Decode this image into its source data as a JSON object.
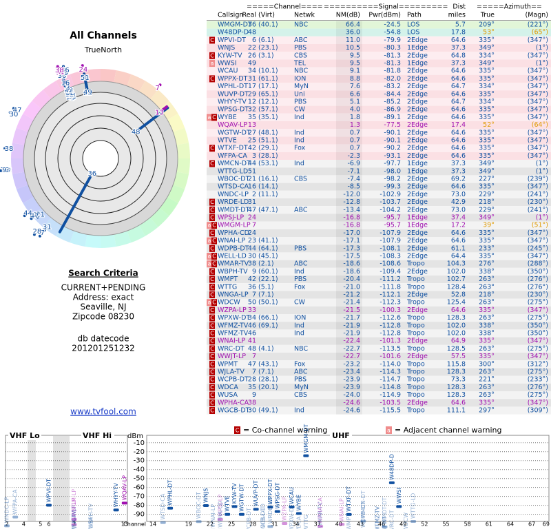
{
  "header": {
    "title": "All Channels",
    "north": "TrueNorth"
  },
  "criteria": {
    "title": "Search Criteria",
    "lines": [
      "CURRENT+PENDING",
      "Address: exact",
      "Seaville, NJ",
      "Zipcode 08230"
    ],
    "db_label": "db datecode",
    "db_value": "201201251232"
  },
  "link": "www.tvfool.com",
  "table": {
    "header_top": [
      "=====Channel====",
      "==========Signal=========",
      "Dist",
      "=====Azimuth=="
    ],
    "columns": [
      "Callsign",
      "Real",
      "(Virt)",
      "Netwk",
      "NM(dB)",
      "Pwr(dBm)",
      "Path",
      "miles",
      "True",
      "(Magn)"
    ],
    "rows": [
      {
        "call": "WMGM-DT",
        "real": "36",
        "virt": "(40.1)",
        "net": "NBC",
        "nm": "66.4",
        "pwr": "-24.5",
        "path": "LOS",
        "dist": "5.7",
        "true": "209°",
        "magn": "(221°)",
        "color": "#1050a0"
      },
      {
        "call": "W48DP-D",
        "real": "48",
        "nm": "36.0",
        "pwr": "-54.8",
        "path": "LOS",
        "dist": "17.8",
        "true": "53°",
        "magn": "(65°)",
        "color": "#1050a0",
        "az_color": "#e09a00"
      },
      {
        "flags": [
          "C"
        ],
        "call": "WPVI-DT",
        "real": "6",
        "virt": "(6.1)",
        "net": "ABC",
        "nm": "11.0",
        "pwr": "-79.9",
        "path": "2Edge",
        "dist": "64.6",
        "true": "335°",
        "magn": "(347°)",
        "color": "#1050a0"
      },
      {
        "call": "WNJS",
        "real": "22",
        "virt": "(23.1)",
        "net": "PBS",
        "nm": "10.5",
        "pwr": "-80.3",
        "path": "1Edge",
        "dist": "37.3",
        "true": "349°",
        "magn": "(1°)",
        "color": "#1050a0"
      },
      {
        "flags": [
          "C"
        ],
        "call": "KYW-TV",
        "real": "26",
        "virt": "(3.1)",
        "net": "CBS",
        "nm": "9.5",
        "pwr": "-81.3",
        "path": "2Edge",
        "dist": "64.8",
        "true": "334°",
        "magn": "(347°)",
        "color": "#1050a0"
      },
      {
        "flags": [
          "a"
        ],
        "call": "WWSI",
        "real": "49",
        "net": "TEL",
        "nm": "9.5",
        "pwr": "-81.3",
        "path": "1Edge",
        "dist": "37.3",
        "true": "349°",
        "magn": "(1°)",
        "color": "#1050a0"
      },
      {
        "call": "WCAU",
        "real": "34",
        "virt": "(10.1)",
        "net": "NBC",
        "nm": "9.1",
        "pwr": "-81.8",
        "path": "2Edge",
        "dist": "64.6",
        "true": "335°",
        "magn": "(347°)",
        "color": "#1050a0"
      },
      {
        "flags": [
          "C"
        ],
        "call": "WPPX-DT",
        "real": "31",
        "virt": "(61.1)",
        "net": "ION",
        "nm": "8.8",
        "pwr": "-82.0",
        "path": "2Edge",
        "dist": "64.6",
        "true": "335°",
        "magn": "(347°)",
        "color": "#1050a0"
      },
      {
        "call": "WPHL-DT",
        "real": "17",
        "virt": "(17.1)",
        "net": "MyN",
        "nm": "7.6",
        "pwr": "-83.2",
        "path": "2Edge",
        "dist": "64.7",
        "true": "334°",
        "magn": "(347°)",
        "color": "#1050a0"
      },
      {
        "call": "WUVP-DT",
        "real": "29",
        "virt": "(65.1)",
        "net": "Uni",
        "nm": "6.6",
        "pwr": "-84.4",
        "path": "2Edge",
        "dist": "64.6",
        "true": "335°",
        "magn": "(347°)",
        "color": "#1050a0"
      },
      {
        "call": "WHYY-TV",
        "real": "12",
        "virt": "(12.1)",
        "net": "PBS",
        "nm": "5.1",
        "pwr": "-85.2",
        "path": "2Edge",
        "dist": "64.7",
        "true": "334°",
        "magn": "(347°)",
        "color": "#1050a0"
      },
      {
        "call": "WPSG-DT",
        "real": "32",
        "virt": "(57.1)",
        "net": "CW",
        "nm": "4.0",
        "pwr": "-86.9",
        "path": "2Edge",
        "dist": "64.6",
        "true": "335°",
        "magn": "(347°)",
        "color": "#1050a0"
      },
      {
        "flags": [
          "a",
          "C"
        ],
        "call": "WYBE",
        "real": "35",
        "virt": "(35.1)",
        "net": "Ind",
        "nm": "1.8",
        "pwr": "-89.1",
        "path": "2Edge",
        "dist": "64.6",
        "true": "335°",
        "magn": "(347°)",
        "color": "#1050a0"
      },
      {
        "call": "WQAV-LP",
        "real": "13",
        "nm": "1.3",
        "pwr": "-77.5",
        "path": "2Edge",
        "dist": "17.4",
        "true": "52°",
        "magn": "(64°)",
        "color": "#a010b0",
        "az_color": "#e09a00"
      },
      {
        "call": "WGTW-DT",
        "real": "27",
        "virt": "(48.1)",
        "net": "Ind",
        "nm": "0.7",
        "pwr": "-90.1",
        "path": "2Edge",
        "dist": "64.6",
        "true": "335°",
        "magn": "(347°)",
        "color": "#1050a0"
      },
      {
        "call": "WTVE",
        "real": "25",
        "virt": "(51.1)",
        "net": "Ind",
        "nm": "0.7",
        "pwr": "-90.1",
        "path": "2Edge",
        "dist": "64.6",
        "true": "335°",
        "magn": "(347°)",
        "color": "#1050a0"
      },
      {
        "flags": [
          "C"
        ],
        "call": "WTXF-DT",
        "real": "42",
        "virt": "(29.1)",
        "net": "Fox",
        "nm": "0.7",
        "pwr": "-90.2",
        "path": "2Edge",
        "dist": "64.6",
        "true": "335°",
        "magn": "(347°)",
        "color": "#1050a0"
      },
      {
        "call": "WFPA-CA",
        "real": "3",
        "virt": "(28.1)",
        "nm": "-2.3",
        "pwr": "-93.1",
        "path": "2Edge",
        "dist": "64.6",
        "true": "335°",
        "magn": "(347°)",
        "color": "#1050a0"
      },
      {
        "flags": [
          "C"
        ],
        "call": "WMCN-DT",
        "real": "44",
        "virt": "(53.1)",
        "net": "Ind",
        "nm": "-6.9",
        "pwr": "-97.7",
        "path": "1Edge",
        "dist": "37.3",
        "true": "349°",
        "magn": "(1°)",
        "color": "#1050a0"
      },
      {
        "call": "WTTG-LD",
        "real": "51",
        "nm": "-7.1",
        "pwr": "-98.0",
        "path": "1Edge",
        "dist": "37.3",
        "true": "349°",
        "magn": "(1°)",
        "color": "#1050a0"
      },
      {
        "call": "WBOC-DT",
        "real": "21",
        "virt": "(16.1)",
        "net": "CBS",
        "nm": "-7.4",
        "pwr": "-98.2",
        "path": "2Edge",
        "dist": "69.2",
        "true": "227°",
        "magn": "(239°)",
        "color": "#1050a0"
      },
      {
        "call": "WTSD-CA",
        "real": "16",
        "virt": "(14.1)",
        "nm": "-8.5",
        "pwr": "-99.3",
        "path": "2Edge",
        "dist": "64.6",
        "true": "335°",
        "magn": "(347°)",
        "color": "#1050a0"
      },
      {
        "call": "WNDC-LP",
        "real": "2",
        "virt": "(11.1)",
        "nm": "-12.0",
        "pwr": "-102.9",
        "path": "2Edge",
        "dist": "73.0",
        "true": "229°",
        "magn": "(241°)",
        "color": "#1050a0"
      },
      {
        "flags": [
          "C"
        ],
        "call": "WRDE-LD",
        "real": "31",
        "nm": "-12.8",
        "pwr": "-103.7",
        "path": "2Edge",
        "dist": "42.9",
        "true": "218°",
        "magn": "(230°)",
        "color": "#1050a0"
      },
      {
        "flags": [
          "C"
        ],
        "call": "WMDT-DT",
        "real": "47",
        "virt": "(47.1)",
        "net": "ABC",
        "nm": "-13.4",
        "pwr": "-104.2",
        "path": "2Edge",
        "dist": "73.0",
        "true": "229°",
        "magn": "(241°)",
        "color": "#1050a0"
      },
      {
        "flags": [
          "C"
        ],
        "call": "WPSJ-LP",
        "real": "24",
        "nm": "-16.8",
        "pwr": "-95.7",
        "path": "1Edge",
        "dist": "37.4",
        "true": "349°",
        "magn": "(1°)",
        "color": "#a010b0"
      },
      {
        "flags": [
          "a",
          "C"
        ],
        "call": "WMGM-LP",
        "real": "7",
        "nm": "-16.8",
        "pwr": "-95.7",
        "path": "1Edge",
        "dist": "17.2",
        "true": "39°",
        "magn": "(51°)",
        "color": "#a010b0",
        "az_color": "#e09a00"
      },
      {
        "flags": [
          "C"
        ],
        "call": "WPHA-CD",
        "real": "24",
        "nm": "-17.0",
        "pwr": "-107.9",
        "path": "2Edge",
        "dist": "64.6",
        "true": "335°",
        "magn": "(347°)",
        "color": "#1050a0"
      },
      {
        "flags": [
          "a",
          "C"
        ],
        "call": "WNAI-LP",
        "real": "23",
        "virt": "(41.1)",
        "nm": "-17.1",
        "pwr": "-107.9",
        "path": "2Edge",
        "dist": "64.6",
        "true": "335°",
        "magn": "(347°)",
        "color": "#1050a0"
      },
      {
        "flags": [
          "C"
        ],
        "call": "WDPB-DT",
        "real": "44",
        "virt": "(64.1)",
        "net": "PBS",
        "nm": "-17.3",
        "pwr": "-108.1",
        "path": "2Edge",
        "dist": "61.1",
        "true": "233°",
        "magn": "(245°)",
        "color": "#1050a0"
      },
      {
        "flags": [
          "a",
          "C"
        ],
        "call": "WELL-LD",
        "real": "30",
        "virt": "(45.1)",
        "nm": "-17.5",
        "pwr": "-108.3",
        "path": "2Edge",
        "dist": "64.4",
        "true": "335°",
        "magn": "(347°)",
        "color": "#1050a0"
      },
      {
        "flags": [
          "a",
          "C"
        ],
        "call": "WMAR-TV",
        "real": "38",
        "virt": "(2.1)",
        "net": "ABC",
        "nm": "-18.6",
        "pwr": "-108.6",
        "path": "Tropo",
        "dist": "104.3",
        "true": "276°",
        "magn": "(288°)",
        "color": "#1050a0"
      },
      {
        "flags": [
          "C"
        ],
        "call": "WBPH-TV",
        "real": "9",
        "virt": "(60.1)",
        "net": "Ind",
        "nm": "-18.6",
        "pwr": "-109.4",
        "path": "2Edge",
        "dist": "102.0",
        "true": "338°",
        "magn": "(350°)",
        "color": "#1050a0"
      },
      {
        "flags": [
          "C"
        ],
        "call": "WMPT",
        "real": "42",
        "virt": "(22.1)",
        "net": "PBS",
        "nm": "-20.4",
        "pwr": "-111.2",
        "path": "Tropo",
        "dist": "102.7",
        "true": "263°",
        "magn": "(276°)",
        "color": "#1050a0"
      },
      {
        "flags": [
          "C"
        ],
        "call": "WTTG",
        "real": "36",
        "virt": "(5.1)",
        "net": "Fox",
        "nm": "-21.0",
        "pwr": "-111.8",
        "path": "Tropo",
        "dist": "128.4",
        "true": "263°",
        "magn": "(276°)",
        "color": "#1050a0"
      },
      {
        "flags": [
          "C"
        ],
        "call": "WNGA-LP",
        "real": "7",
        "virt": "(7.1)",
        "nm": "-21.2",
        "pwr": "-112.1",
        "path": "2Edge",
        "dist": "52.8",
        "true": "218°",
        "magn": "(230°)",
        "color": "#1050a0"
      },
      {
        "flags": [
          "a",
          "C"
        ],
        "call": "WDCW",
        "real": "50",
        "virt": "(50.1)",
        "net": "CW",
        "nm": "-21.4",
        "pwr": "-112.3",
        "path": "Tropo",
        "dist": "125.4",
        "true": "263°",
        "magn": "(275°)",
        "color": "#1050a0"
      },
      {
        "flags": [
          "C"
        ],
        "call": "WZPA-LP",
        "real": "33",
        "nm": "-21.5",
        "pwr": "-100.3",
        "path": "2Edge",
        "dist": "64.6",
        "true": "335°",
        "magn": "(347°)",
        "color": "#a010b0"
      },
      {
        "flags": [
          "C"
        ],
        "call": "WPXW-DT",
        "real": "34",
        "virt": "(66.1)",
        "net": "ION",
        "nm": "-21.7",
        "pwr": "-112.6",
        "path": "Tropo",
        "dist": "128.3",
        "true": "263°",
        "magn": "(275°)",
        "color": "#1050a0"
      },
      {
        "flags": [
          "C"
        ],
        "call": "WFMZ-TV",
        "real": "46",
        "virt": "(69.1)",
        "net": "Ind",
        "nm": "-21.9",
        "pwr": "-112.8",
        "path": "Tropo",
        "dist": "102.0",
        "true": "338°",
        "magn": "(350°)",
        "color": "#1050a0"
      },
      {
        "flags": [
          "C"
        ],
        "call": "WFMZ-TV",
        "real": "46",
        "net": "Ind",
        "nm": "-21.9",
        "pwr": "-112.8",
        "path": "Tropo",
        "dist": "102.0",
        "true": "338°",
        "magn": "(350°)",
        "color": "#1050a0"
      },
      {
        "flags": [
          "C"
        ],
        "call": "WNAI-LP",
        "real": "41",
        "nm": "-22.4",
        "pwr": "-101.3",
        "path": "2Edge",
        "dist": "64.9",
        "true": "335°",
        "magn": "(347°)",
        "color": "#a010b0"
      },
      {
        "flags": [
          "C"
        ],
        "call": "WRC-DT",
        "real": "48",
        "virt": "(4.1)",
        "net": "NBC",
        "nm": "-22.7",
        "pwr": "-113.5",
        "path": "Tropo",
        "dist": "128.5",
        "true": "263°",
        "magn": "(275°)",
        "color": "#1050a0"
      },
      {
        "flags": [
          "C"
        ],
        "call": "WWJT-LP",
        "real": "7",
        "nm": "-22.7",
        "pwr": "-101.6",
        "path": "2Edge",
        "dist": "57.5",
        "true": "335°",
        "magn": "(347°)",
        "color": "#a010b0"
      },
      {
        "flags": [
          "C"
        ],
        "call": "WPMT",
        "real": "47",
        "virt": "(43.1)",
        "net": "Fox",
        "nm": "-23.2",
        "pwr": "-114.0",
        "path": "Tropo",
        "dist": "115.8",
        "true": "300°",
        "magn": "(312°)",
        "color": "#1050a0"
      },
      {
        "flags": [
          "C"
        ],
        "call": "WJLA-TV",
        "real": "7",
        "virt": "(7.1)",
        "net": "ABC",
        "nm": "-23.4",
        "pwr": "-114.3",
        "path": "Tropo",
        "dist": "128.3",
        "true": "263°",
        "magn": "(275°)",
        "color": "#1050a0"
      },
      {
        "flags": [
          "C"
        ],
        "call": "WCPB-DT",
        "real": "28",
        "virt": "(28.1)",
        "net": "PBS",
        "nm": "-23.9",
        "pwr": "-114.7",
        "path": "Tropo",
        "dist": "73.3",
        "true": "221°",
        "magn": "(233°)",
        "color": "#1050a0"
      },
      {
        "flags": [
          "C"
        ],
        "call": "WDCA",
        "real": "35",
        "virt": "(20.1)",
        "net": "MyN",
        "nm": "-23.9",
        "pwr": "-114.8",
        "path": "Tropo",
        "dist": "128.3",
        "true": "263°",
        "magn": "(276°)",
        "color": "#1050a0"
      },
      {
        "flags": [
          "C"
        ],
        "call": "WUSA",
        "real": "9",
        "net": "CBS",
        "nm": "-24.0",
        "pwr": "-114.9",
        "path": "Tropo",
        "dist": "128.3",
        "true": "263°",
        "magn": "(275°)",
        "color": "#1050a0"
      },
      {
        "flags": [
          "C"
        ],
        "call": "WPHA-CA",
        "real": "38",
        "nm": "-24.6",
        "pwr": "-103.5",
        "path": "2Edge",
        "dist": "64.6",
        "true": "335°",
        "magn": "(347°)",
        "color": "#a010b0"
      },
      {
        "flags": [
          "C"
        ],
        "call": "WGCB-DT",
        "real": "30",
        "virt": "(49.1)",
        "net": "Ind",
        "nm": "-24.6",
        "pwr": "-115.5",
        "path": "Tropo",
        "dist": "111.1",
        "true": "297°",
        "magn": "(309°)",
        "color": "#1050a0"
      }
    ]
  },
  "spectrum": {
    "legend": [
      {
        "flag": "C",
        "text": "= Co-channel warning"
      },
      {
        "flag": "a",
        "text": "= Adjacent channel warning"
      }
    ],
    "band_labels": [
      "VHF Lo",
      "VHF Hi",
      "UHF"
    ],
    "y_unit": "dBm",
    "x_label": "Channel",
    "ylim": [
      -4,
      -98
    ],
    "yticks": [
      -10,
      -20,
      -30,
      -40,
      -50,
      -60,
      -70,
      -80,
      -90
    ],
    "vhf_ticks": [
      2,
      4,
      5,
      6,
      7,
      13
    ],
    "uhf_ticks": [
      14,
      19,
      22,
      25,
      28,
      31,
      34,
      37,
      40,
      43,
      46,
      49,
      52,
      55,
      58,
      61,
      64,
      67,
      69
    ]
  }
}
